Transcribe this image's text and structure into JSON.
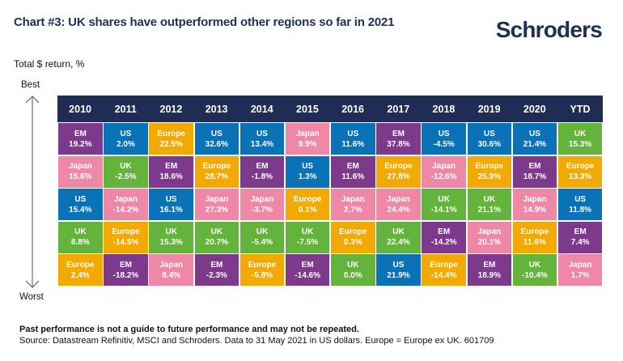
{
  "header": {
    "title": "Chart #3: UK shares have outperformed other regions so far in 2021",
    "logo": "Schroders"
  },
  "colors": {
    "header_bg": "#1f2d55",
    "EM": "#7d3a8c",
    "US": "#0a73b8",
    "Europe": "#f2a900",
    "Japan": "#ee88a6",
    "UK": "#63b33c"
  },
  "chart_data": {
    "type": "table",
    "title": "Chart #3: UK shares have outperformed other regions so far in 2021",
    "ylabel": "Total $ return, %",
    "rank_top_label": "Best",
    "rank_bottom_label": "Worst",
    "columns": [
      "2010",
      "2011",
      "2012",
      "2013",
      "2014",
      "2015",
      "2016",
      "2017",
      "2018",
      "2019",
      "2020",
      "YTD"
    ],
    "rankings": [
      [
        {
          "region": "EM",
          "value": "19.2%"
        },
        {
          "region": "Japan",
          "value": "15.6%"
        },
        {
          "region": "US",
          "value": "15.4%"
        },
        {
          "region": "UK",
          "value": "8.8%"
        },
        {
          "region": "Europe",
          "value": "2.4%"
        }
      ],
      [
        {
          "region": "US",
          "value": "2.0%"
        },
        {
          "region": "UK",
          "value": "-2.5%"
        },
        {
          "region": "Japan",
          "value": "-14.2%"
        },
        {
          "region": "Europe",
          "value": "-14.5%"
        },
        {
          "region": "EM",
          "value": "-18.2%"
        }
      ],
      [
        {
          "region": "Europe",
          "value": "22.5%"
        },
        {
          "region": "EM",
          "value": "18.6%"
        },
        {
          "region": "US",
          "value": "16.1%"
        },
        {
          "region": "UK",
          "value": "15.3%"
        },
        {
          "region": "Japan",
          "value": "8.4%"
        }
      ],
      [
        {
          "region": "US",
          "value": "32.6%"
        },
        {
          "region": "Europe",
          "value": "28.7%"
        },
        {
          "region": "Japan",
          "value": "27.3%"
        },
        {
          "region": "UK",
          "value": "20.7%"
        },
        {
          "region": "EM",
          "value": "-2.3%"
        }
      ],
      [
        {
          "region": "US",
          "value": "13.4%"
        },
        {
          "region": "EM",
          "value": "-1.8%"
        },
        {
          "region": "Japan",
          "value": "-3.7%"
        },
        {
          "region": "UK",
          "value": "-5.4%"
        },
        {
          "region": "Europe",
          "value": "-5.8%"
        }
      ],
      [
        {
          "region": "Japan",
          "value": "9.9%"
        },
        {
          "region": "US",
          "value": "1.3%"
        },
        {
          "region": "Europe",
          "value": "0.1%"
        },
        {
          "region": "UK",
          "value": "-7.5%"
        },
        {
          "region": "EM",
          "value": "-14.6%"
        }
      ],
      [
        {
          "region": "US",
          "value": "11.6%"
        },
        {
          "region": "EM",
          "value": "11.6%"
        },
        {
          "region": "Japan",
          "value": "2.7%"
        },
        {
          "region": "Europe",
          "value": "0.3%"
        },
        {
          "region": "UK",
          "value": "0.0%"
        }
      ],
      [
        {
          "region": "EM",
          "value": "37.8%"
        },
        {
          "region": "Europe",
          "value": "27.8%"
        },
        {
          "region": "Japan",
          "value": "24.4%"
        },
        {
          "region": "UK",
          "value": "22.4%"
        },
        {
          "region": "US",
          "value": "21.9%"
        }
      ],
      [
        {
          "region": "US",
          "value": "-4.5%"
        },
        {
          "region": "Japan",
          "value": "-12.6%"
        },
        {
          "region": "UK",
          "value": "-14.1%"
        },
        {
          "region": "EM",
          "value": "-14.2%"
        },
        {
          "region": "Europe",
          "value": "-14.4%"
        }
      ],
      [
        {
          "region": "US",
          "value": "30.6%"
        },
        {
          "region": "Europe",
          "value": "25.9%"
        },
        {
          "region": "UK",
          "value": "21.1%"
        },
        {
          "region": "Japan",
          "value": "20.1%"
        },
        {
          "region": "EM",
          "value": "18.9%"
        }
      ],
      [
        {
          "region": "US",
          "value": "21.4%"
        },
        {
          "region": "EM",
          "value": "18.7%"
        },
        {
          "region": "Japan",
          "value": "14.9%"
        },
        {
          "region": "Europe",
          "value": "11.6%"
        },
        {
          "region": "UK",
          "value": "-10.4%"
        }
      ],
      [
        {
          "region": "UK",
          "value": "15.3%"
        },
        {
          "region": "Europe",
          "value": "13.3%"
        },
        {
          "region": "US",
          "value": "11.8%"
        },
        {
          "region": "EM",
          "value": "7.4%"
        },
        {
          "region": "Japan",
          "value": "1.7%"
        }
      ]
    ]
  },
  "footer": {
    "disclaimer": "Past performance is not a guide to future performance and may not be repeated.",
    "source": "Source: Datastream Refinitiv, MSCI and Schroders. Data to 31 May 2021 in US dollars. Europe = Europe ex UK. 601709"
  }
}
